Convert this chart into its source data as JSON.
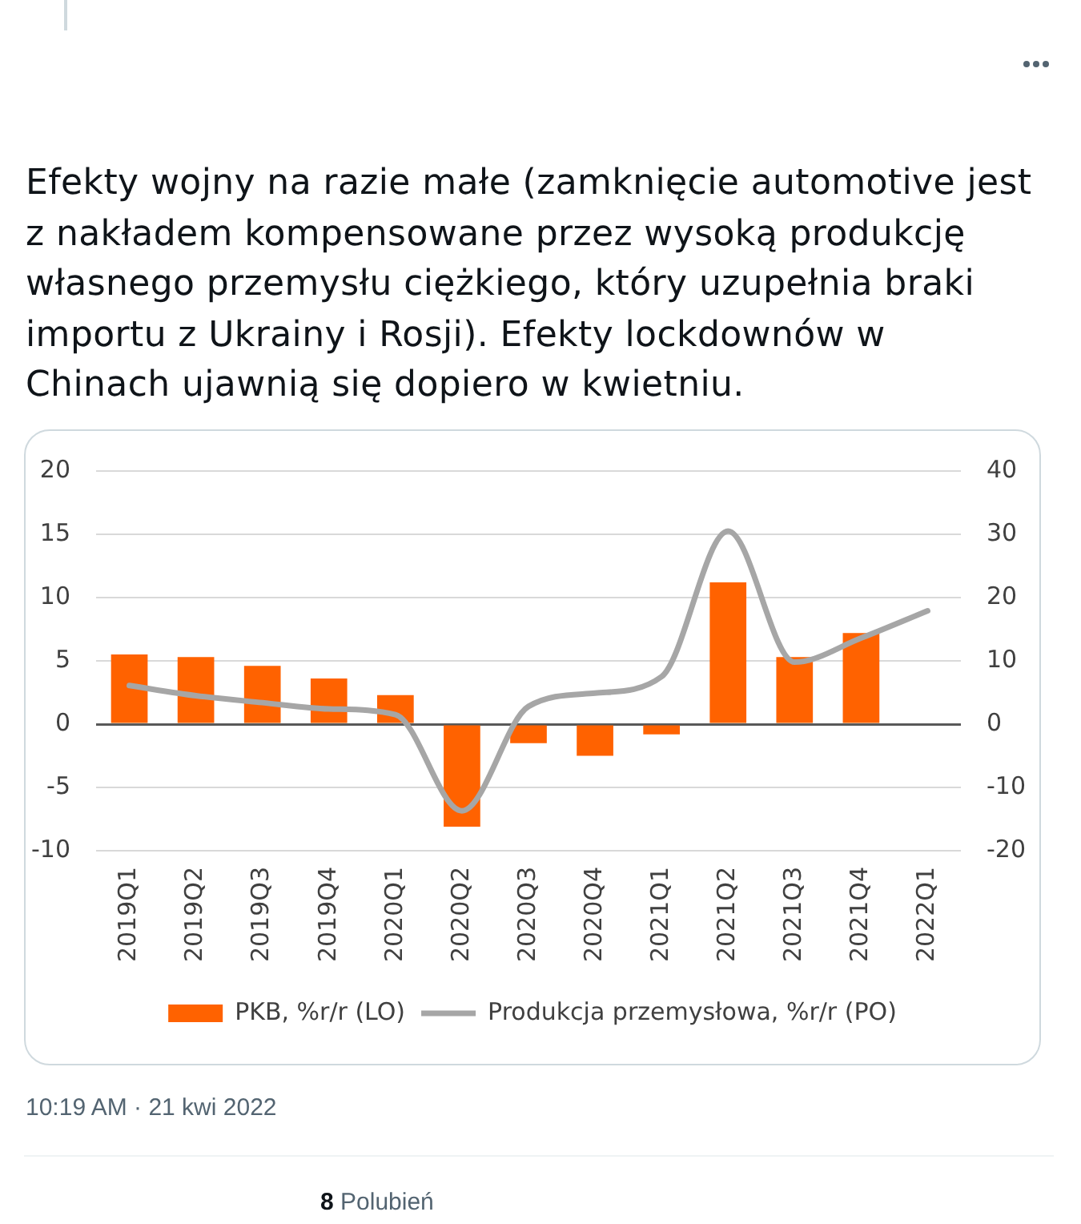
{
  "chart_data": {
    "type": "bar",
    "title": "Efekty wojny na razie małe (zamknięcie automotive jest z nakładem kompensowane przez wysoką produkcję własnego przemysłu ciężkiego, który uzupełnia braki importu z Ukrainy i Rosji). Efekty lockdownów w Chinach ujawnią się dopiero w kwietniu.",
    "annotations": [
      "10:19 AM · 21 kwi 2022",
      "8 Polubień"
    ],
    "categories": [
      "2019Q1",
      "2019Q2",
      "2019Q3",
      "2019Q4",
      "2020Q1",
      "2020Q2",
      "2020Q3",
      "2020Q4",
      "2021Q1",
      "2021Q2",
      "2021Q3",
      "2021Q4",
      "2022Q1"
    ],
    "series": [
      {
        "name": "PKB, %r/r (LO)",
        "color": "#ff6200",
        "values": [
          5.5,
          5.3,
          4.6,
          3.6,
          2.3,
          -8.1,
          -1.5,
          -2.5,
          -0.8,
          11.2,
          5.3,
          7.2,
          null
        ]
      },
      {
        "name": "Produkcja przemysłowa, %r/r (PO)",
        "type": "line",
        "axis": "y2",
        "color": "#a6a6a6",
        "values": [
          6.1,
          4.5,
          3.4,
          2.4,
          1.5,
          -13.7,
          2.8,
          4.9,
          7.5,
          30.5,
          9.8,
          13.6,
          17.9
        ]
      }
    ],
    "ylim": [
      -10,
      20
    ],
    "yticks": [
      -10,
      -5,
      0,
      5,
      10,
      15,
      20
    ],
    "y2lim": [
      -20,
      40
    ],
    "y2ticks": [
      -20,
      -10,
      0,
      10,
      20,
      30,
      40
    ],
    "grid": "y",
    "legend": "bottom",
    "marker": "none"
  }
}
